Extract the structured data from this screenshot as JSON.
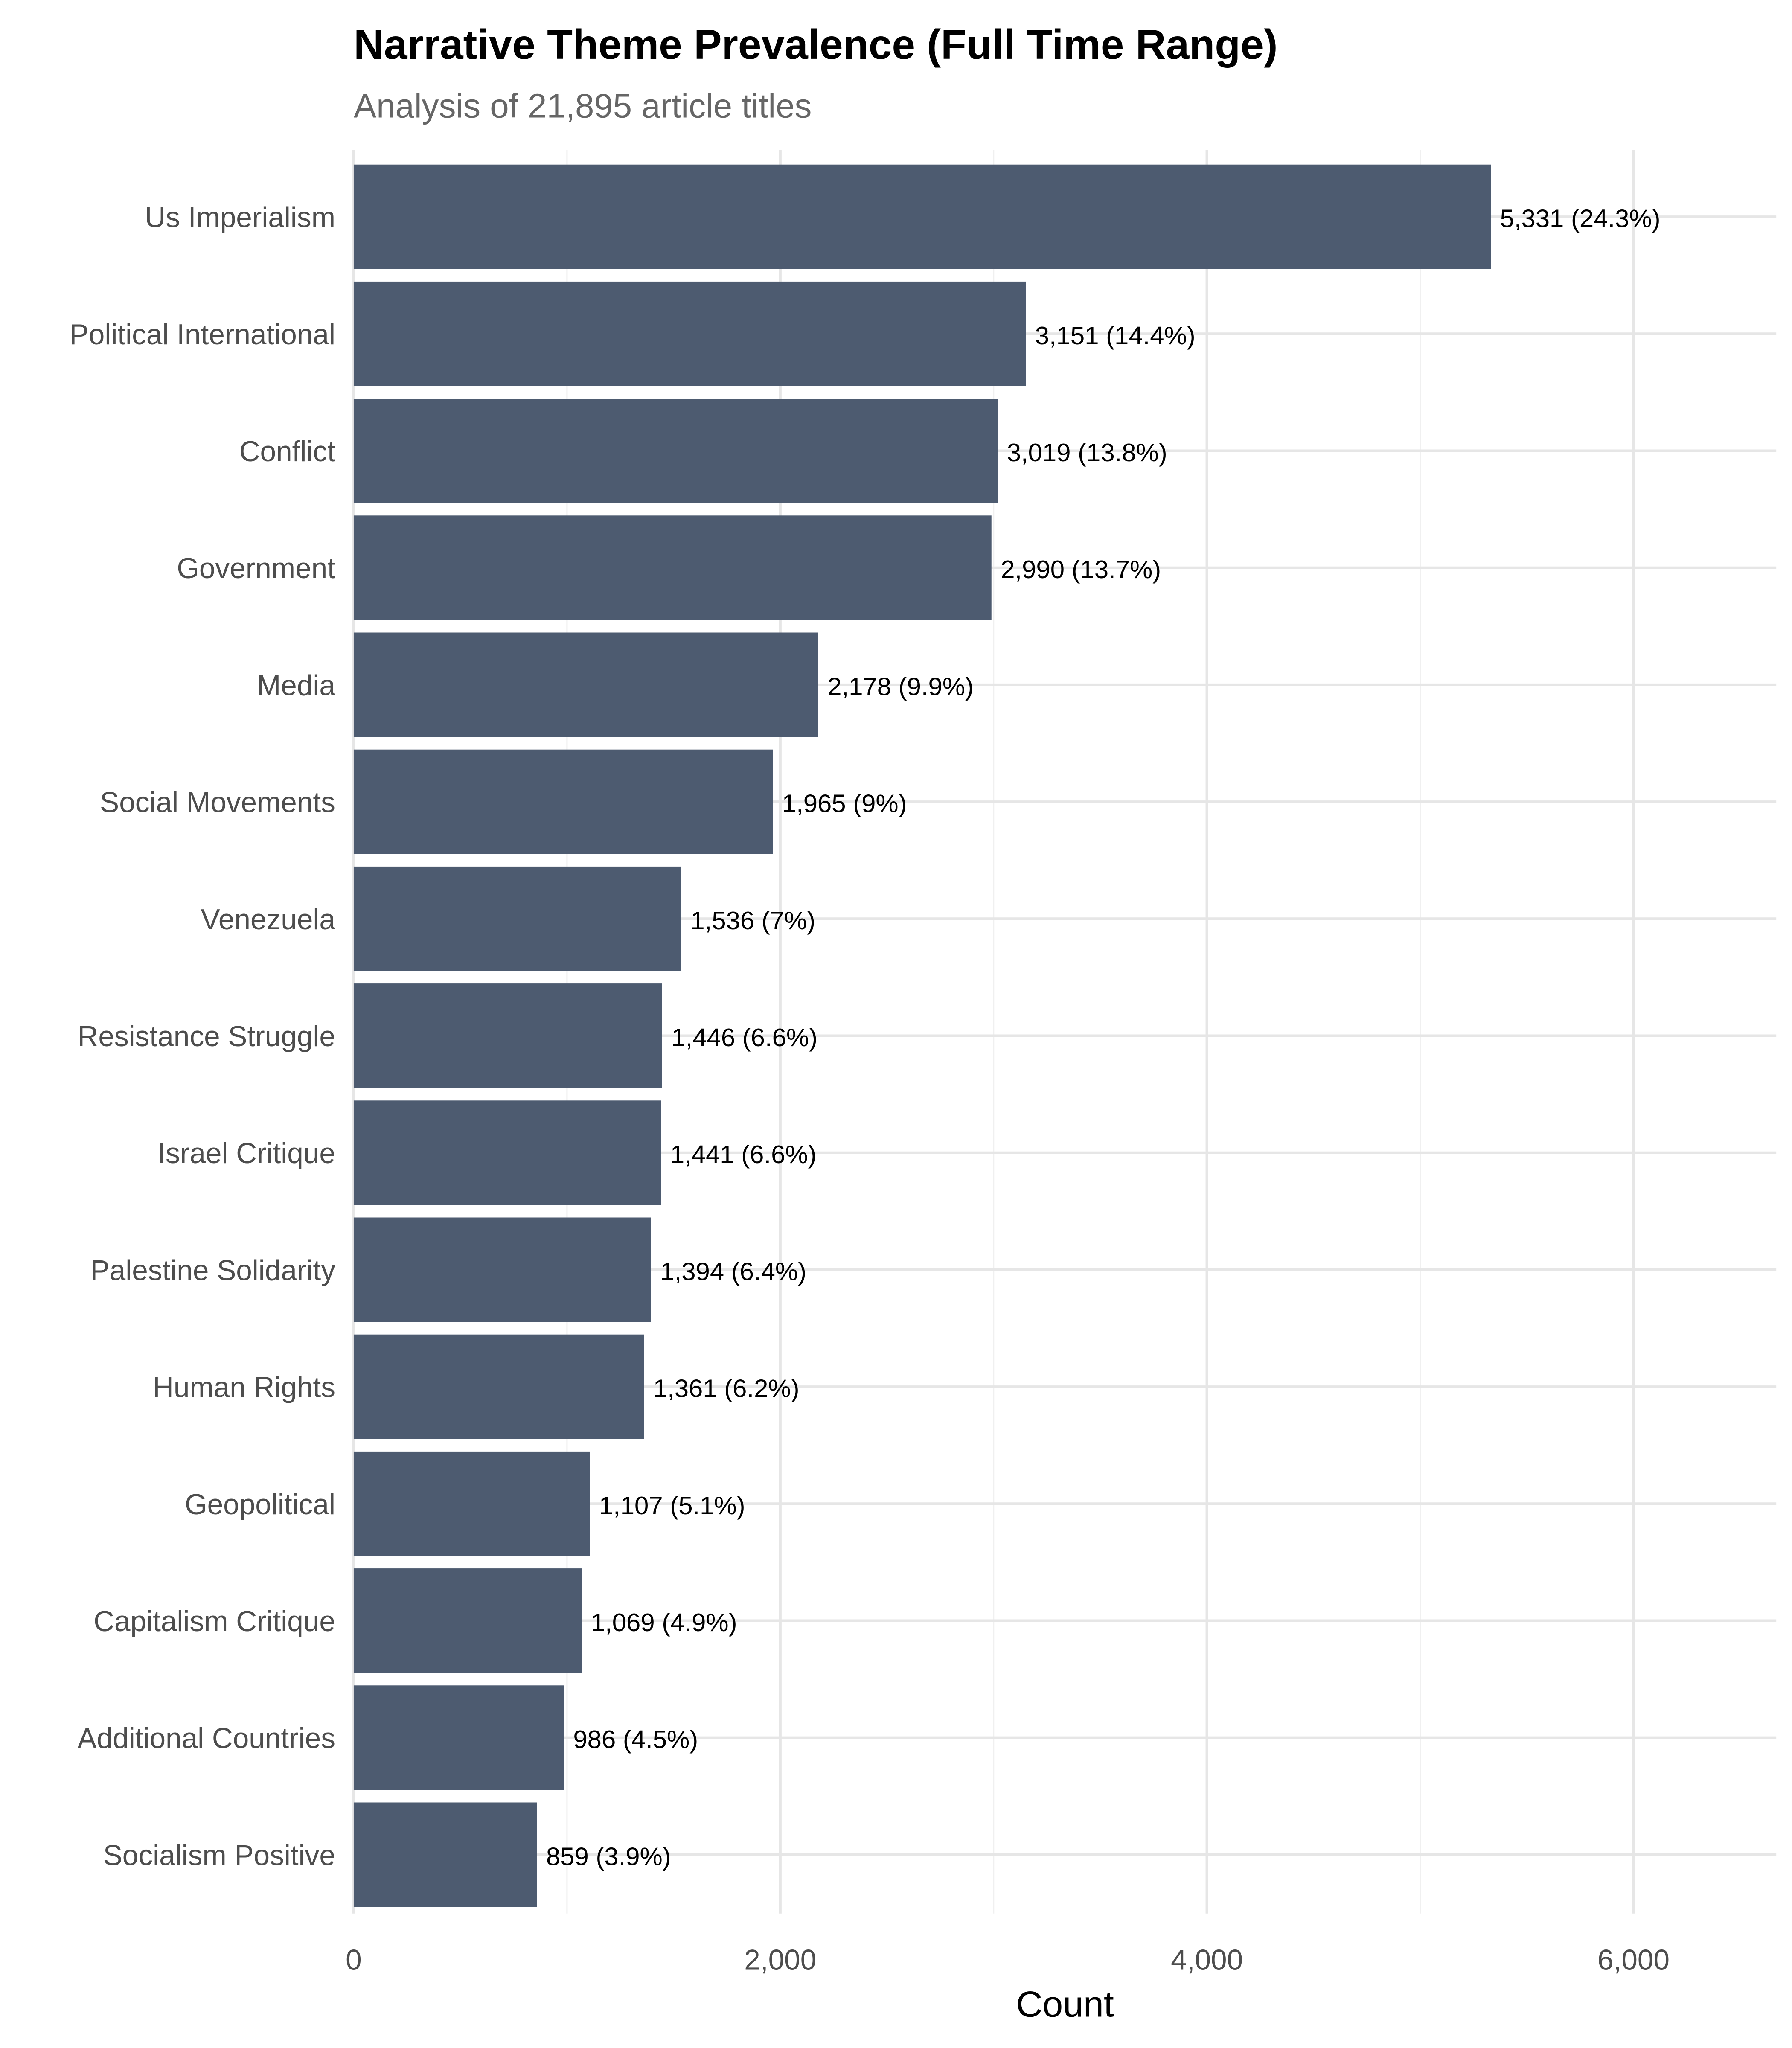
{
  "chart_data": {
    "type": "bar",
    "orientation": "horizontal",
    "title": "Narrative Theme Prevalence (Full Time Range)",
    "subtitle": "Analysis of 21,895 article titles",
    "xlabel": "Count",
    "ylabel": "",
    "xlim": [
      0,
      6650
    ],
    "xticks": [
      0,
      2000,
      4000,
      6000
    ],
    "xtick_labels": [
      "0",
      "2,000",
      "4,000",
      "6,000"
    ],
    "grid": true,
    "bar_color": "#4d5b70",
    "categories": [
      "Us Imperialism",
      "Political International",
      "Conflict",
      "Government",
      "Media",
      "Social Movements",
      "Venezuela",
      "Resistance Struggle",
      "Israel Critique",
      "Palestine Solidarity",
      "Human Rights",
      "Geopolitical",
      "Capitalism Critique",
      "Additional Countries",
      "Socialism Positive"
    ],
    "values": [
      5331,
      3151,
      3019,
      2990,
      2178,
      1965,
      1536,
      1446,
      1441,
      1394,
      1361,
      1107,
      1069,
      986,
      859
    ],
    "data_labels": [
      "5,331 (24.3%)",
      "3,151 (14.4%)",
      "3,019 (13.8%)",
      "2,990 (13.7%)",
      "2,178 (9.9%)",
      "1,965 (9%)",
      "1,536 (7%)",
      "1,446 (6.6%)",
      "1,441 (6.6%)",
      "1,394 (6.4%)",
      "1,361 (6.2%)",
      "1,107 (5.1%)",
      "1,069 (4.9%)",
      "986 (4.5%)",
      "859 (3.9%)"
    ]
  }
}
